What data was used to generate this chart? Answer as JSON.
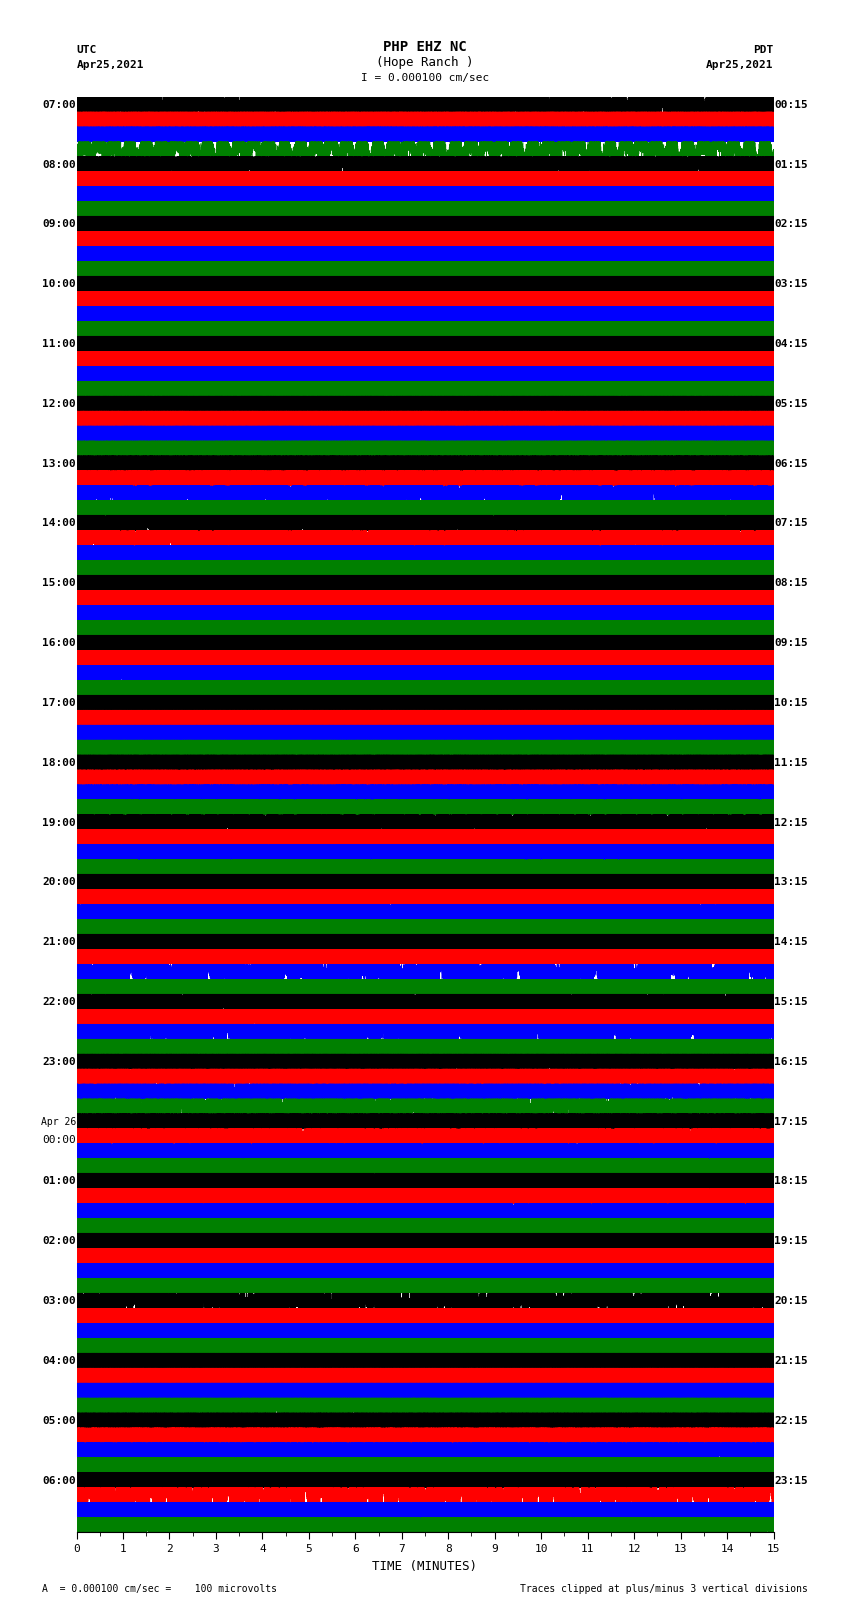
{
  "title_line1": "PHP EHZ NC",
  "title_line2": "(Hope Ranch )",
  "title_line3": "I = 0.000100 cm/sec",
  "label_left_top": "UTC",
  "label_left_date": "Apr25,2021",
  "label_right_top": "PDT",
  "label_right_date": "Apr25,2021",
  "xlabel": "TIME (MINUTES)",
  "footer_left": "A  = 0.000100 cm/sec =    100 microvolts",
  "footer_right": "Traces clipped at plus/minus 3 vertical divisions",
  "utc_labels": [
    "07:00",
    "08:00",
    "09:00",
    "10:00",
    "11:00",
    "12:00",
    "13:00",
    "14:00",
    "15:00",
    "16:00",
    "17:00",
    "18:00",
    "19:00",
    "20:00",
    "21:00",
    "22:00",
    "23:00",
    "Apr 26\n00:00",
    "01:00",
    "02:00",
    "03:00",
    "04:00",
    "05:00",
    "06:00"
  ],
  "pdt_labels": [
    "00:15",
    "01:15",
    "02:15",
    "03:15",
    "04:15",
    "05:15",
    "06:15",
    "07:15",
    "08:15",
    "09:15",
    "10:15",
    "11:15",
    "12:15",
    "13:15",
    "14:15",
    "15:15",
    "16:15",
    "17:15",
    "18:15",
    "19:15",
    "20:15",
    "21:15",
    "22:15",
    "23:15"
  ],
  "n_rows": 24,
  "traces_per_row": 4,
  "colors": [
    "black",
    "red",
    "blue",
    "green"
  ],
  "bg_color": "white",
  "trace_amplitude": 0.3,
  "noise_amplitude": 0.15,
  "minutes": 15,
  "sample_rate": 200,
  "figsize": [
    8.5,
    16.13
  ],
  "dpi": 100
}
